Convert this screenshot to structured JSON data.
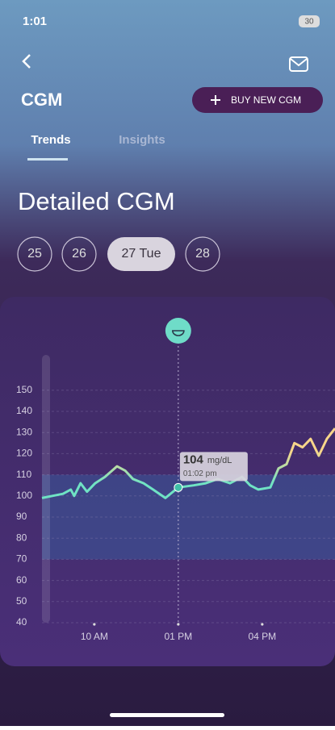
{
  "status": {
    "time": "1:01",
    "battery": "30"
  },
  "header": {
    "title": "CGM",
    "button": "BUY NEW CGM"
  },
  "tabs": [
    "Trends",
    "Insights"
  ],
  "section_title": "Detailed CGM",
  "dates": [
    "25",
    "26",
    "27 Tue",
    "28"
  ],
  "chart_data": {
    "type": "line",
    "x": [
      8.13,
      8.5,
      8.88,
      9.16,
      9.28,
      9.51,
      9.74,
      10.03,
      10.38,
      10.81,
      11.1,
      11.38,
      11.76,
      12.1,
      12.54,
      13.0,
      13.55,
      13.98,
      14.41,
      14.85,
      15.28,
      15.57,
      15.86,
      16.29,
      16.58,
      16.87,
      17.15,
      17.44,
      17.73,
      18.02,
      18.31,
      18.6
    ],
    "series": [
      {
        "values": [
          99,
          100,
          101,
          103,
          100,
          106,
          102,
          106,
          109,
          114,
          112,
          108,
          106,
          103,
          99,
          104,
          105,
          106,
          108,
          106,
          109,
          105,
          103,
          104,
          113,
          115,
          125,
          123,
          127,
          119,
          127,
          132
        ],
        "color": "#6fe3c4",
        "high_color": "#f7d68a"
      }
    ],
    "xlim": [
      8.13,
      18.6
    ],
    "xticks": [
      {
        "value": 10,
        "label": "10 AM"
      },
      {
        "value": 13,
        "label": "01 PM"
      },
      {
        "value": 16,
        "label": "04 PM"
      }
    ],
    "ylim": [
      40,
      165
    ],
    "yticks": [
      40,
      50,
      60,
      70,
      80,
      90,
      100,
      110,
      120,
      130,
      140,
      150
    ],
    "target_range": [
      70,
      110
    ],
    "grid": true,
    "tooltip": {
      "x": 13.0,
      "value": 104,
      "unit": "mg/dL",
      "time": "01:02 pm"
    }
  }
}
